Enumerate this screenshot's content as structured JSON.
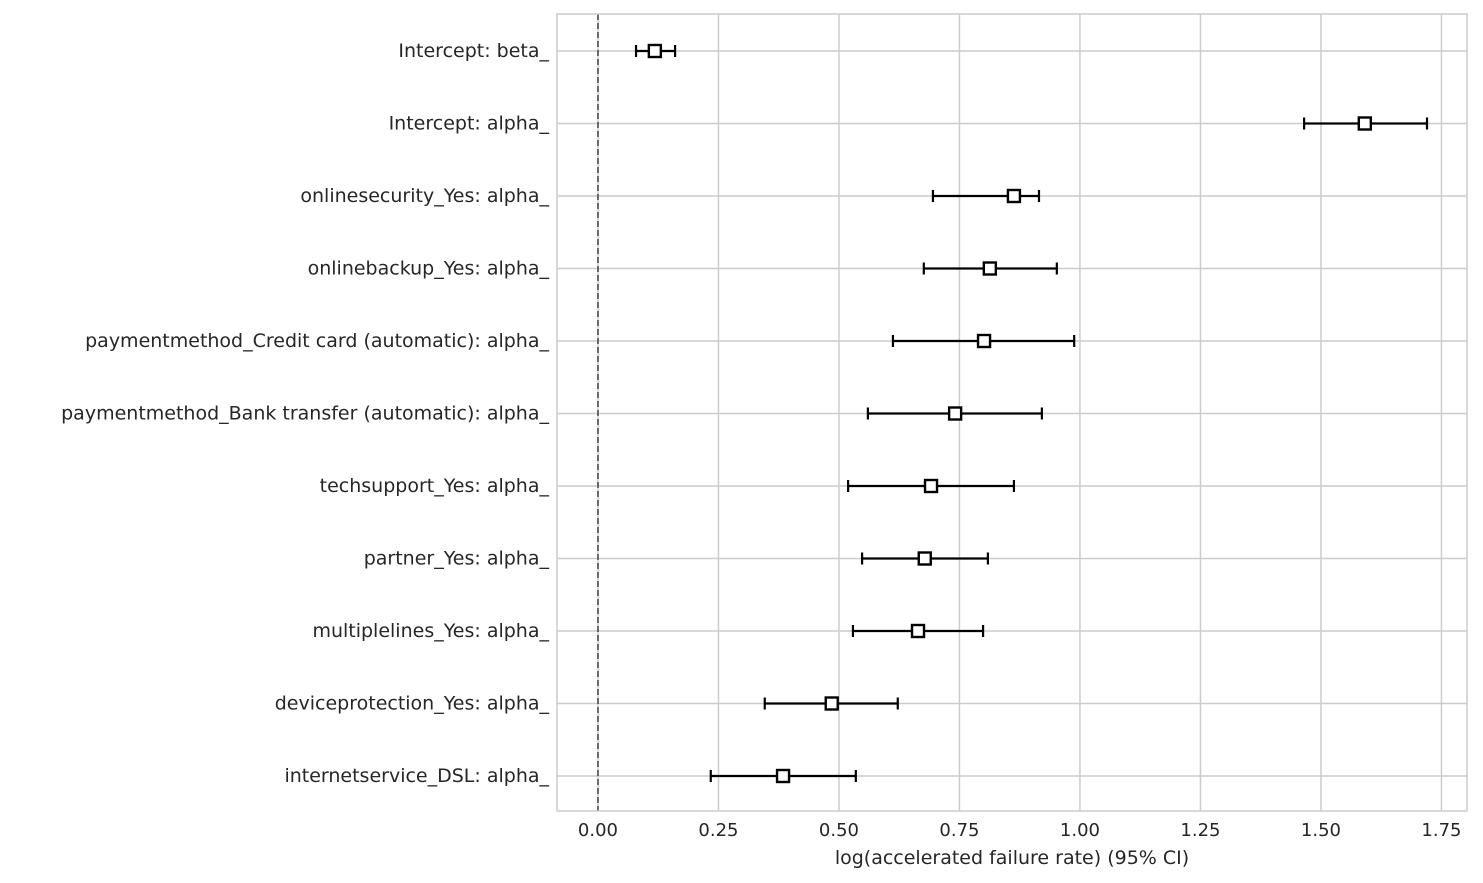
{
  "chart_data": {
    "type": "forest",
    "title": "",
    "xlabel": "log(accelerated failure rate) (95% CI)",
    "ylabel": "",
    "xlim": [
      -0.085,
      1.803
    ],
    "xticks": [
      0.0,
      0.25,
      0.5,
      0.75,
      1.0,
      1.25,
      1.5,
      1.75
    ],
    "xtick_labels": [
      "0.00",
      "0.25",
      "0.50",
      "0.75",
      "1.00",
      "1.25",
      "1.50",
      "1.75"
    ],
    "grid": true,
    "reference_line": 0,
    "rows": [
      {
        "label": "Intercept: beta_",
        "coef": 0.118,
        "lower": 0.079,
        "upper": 0.16
      },
      {
        "label": "Intercept: alpha_",
        "coef": 1.591,
        "lower": 1.465,
        "upper": 1.72
      },
      {
        "label": "onlinesecurity_Yes: alpha_",
        "coef": 0.863,
        "lower": 0.695,
        "upper": 0.915
      },
      {
        "label": "onlinebackup_Yes: alpha_",
        "coef": 0.813,
        "lower": 0.676,
        "upper": 0.952
      },
      {
        "label": "paymentmethod_Credit card (automatic): alpha_",
        "coef": 0.801,
        "lower": 0.612,
        "upper": 0.988
      },
      {
        "label": "paymentmethod_Bank transfer (automatic): alpha_",
        "coef": 0.741,
        "lower": 0.56,
        "upper": 0.921
      },
      {
        "label": "techsupport_Yes: alpha_",
        "coef": 0.691,
        "lower": 0.519,
        "upper": 0.863
      },
      {
        "label": "partner_Yes: alpha_",
        "coef": 0.678,
        "lower": 0.548,
        "upper": 0.809
      },
      {
        "label": "multiplelines_Yes: alpha_",
        "coef": 0.664,
        "lower": 0.529,
        "upper": 0.799
      },
      {
        "label": "deviceprotection_Yes: alpha_",
        "coef": 0.485,
        "lower": 0.346,
        "upper": 0.622
      },
      {
        "label": "internetservice_DSL: alpha_",
        "coef": 0.384,
        "lower": 0.234,
        "upper": 0.535
      }
    ],
    "colors": {
      "marker": "#000000",
      "grid": "#cccccc",
      "reference": "#444444",
      "text": "#262626"
    }
  }
}
